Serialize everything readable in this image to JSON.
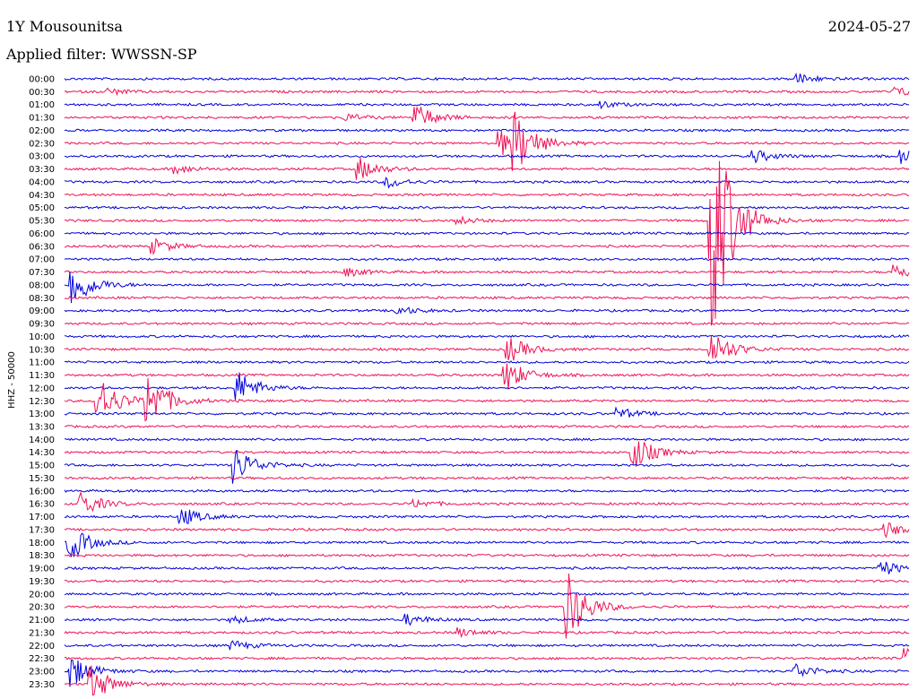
{
  "header": {
    "station": "1Y Mousounitsa",
    "date": "2024-05-27",
    "filter": "Applied filter: WWSSN-SP"
  },
  "chart_data": {
    "type": "line",
    "title": "1Y Mousounitsa",
    "ylabel": "HHZ - 50000",
    "rows": [
      "00:00",
      "00:30",
      "01:00",
      "01:30",
      "02:00",
      "02:30",
      "03:00",
      "03:30",
      "04:00",
      "04:30",
      "05:00",
      "05:30",
      "06:00",
      "06:30",
      "07:00",
      "07:30",
      "08:00",
      "08:30",
      "09:00",
      "09:30",
      "10:00",
      "10:30",
      "11:00",
      "11:30",
      "12:00",
      "12:30",
      "13:00",
      "13:30",
      "14:00",
      "14:30",
      "15:00",
      "15:30",
      "16:00",
      "16:30",
      "17:00",
      "17:30",
      "18:00",
      "18:30",
      "19:00",
      "19:30",
      "20:00",
      "20:30",
      "21:00",
      "21:30",
      "22:00",
      "22:30",
      "23:00",
      "23:30"
    ],
    "colors": [
      "#0000dd",
      "#ee1155"
    ],
    "row_minutes": 30,
    "events": [
      {
        "row": "00:00",
        "minute": 26,
        "amp": 6
      },
      {
        "row": "00:30",
        "minute": 1.5,
        "amp": 4
      },
      {
        "row": "00:30",
        "minute": 29.5,
        "amp": 5
      },
      {
        "row": "01:00",
        "minute": 19,
        "amp": 4
      },
      {
        "row": "01:30",
        "minute": 10,
        "amp": 4
      },
      {
        "row": "01:30",
        "minute": 12.5,
        "amp": 14
      },
      {
        "row": "02:30",
        "minute": 15.5,
        "amp": 14
      },
      {
        "row": "02:30",
        "minute": 16,
        "amp": 30
      },
      {
        "row": "03:00",
        "minute": 24.5,
        "amp": 7
      },
      {
        "row": "03:00",
        "minute": 29.7,
        "amp": 8
      },
      {
        "row": "03:30",
        "minute": 4,
        "amp": 5
      },
      {
        "row": "03:30",
        "minute": 10.5,
        "amp": 12
      },
      {
        "row": "04:00",
        "minute": 11.5,
        "amp": 6
      },
      {
        "row": "05:30",
        "minute": 14,
        "amp": 4
      },
      {
        "row": "05:30",
        "minute": 23,
        "amp": 140
      },
      {
        "row": "06:30",
        "minute": 3.2,
        "amp": 8
      },
      {
        "row": "07:30",
        "minute": 10,
        "amp": 5
      },
      {
        "row": "07:30",
        "minute": 29.5,
        "amp": 9
      },
      {
        "row": "08:00",
        "minute": 0.3,
        "amp": 26
      },
      {
        "row": "09:00",
        "minute": 11.8,
        "amp": 5
      },
      {
        "row": "10:30",
        "minute": 23,
        "amp": 22
      },
      {
        "row": "10:30",
        "minute": 15.8,
        "amp": 14
      },
      {
        "row": "11:30",
        "minute": 15.7,
        "amp": 18
      },
      {
        "row": "12:00",
        "minute": 6.2,
        "amp": 18
      },
      {
        "row": "12:30",
        "minute": 1.2,
        "amp": 30
      },
      {
        "row": "12:30",
        "minute": 3,
        "amp": 32
      },
      {
        "row": "13:00",
        "minute": 19.7,
        "amp": 6
      },
      {
        "row": "14:30",
        "minute": 20.2,
        "amp": 20
      },
      {
        "row": "15:00",
        "minute": 6.1,
        "amp": 20
      },
      {
        "row": "16:30",
        "minute": 0.6,
        "amp": 14
      },
      {
        "row": "16:30",
        "minute": 12.5,
        "amp": 4
      },
      {
        "row": "17:00",
        "minute": 4.2,
        "amp": 10
      },
      {
        "row": "17:30",
        "minute": 29.2,
        "amp": 8
      },
      {
        "row": "18:00",
        "minute": 0.2,
        "amp": 20
      },
      {
        "row": "19:00",
        "minute": 29,
        "amp": 9
      },
      {
        "row": "20:30",
        "minute": 17.9,
        "amp": 38
      },
      {
        "row": "21:00",
        "minute": 6,
        "amp": 4
      },
      {
        "row": "21:00",
        "minute": 12.2,
        "amp": 6
      },
      {
        "row": "21:30",
        "minute": 14,
        "amp": 5
      },
      {
        "row": "22:00",
        "minute": 6,
        "amp": 5
      },
      {
        "row": "22:30",
        "minute": 29.9,
        "amp": 14
      },
      {
        "row": "23:00",
        "minute": 0.2,
        "amp": 20
      },
      {
        "row": "23:00",
        "minute": 26,
        "amp": 8
      },
      {
        "row": "23:30",
        "minute": 1,
        "amp": 20
      }
    ]
  }
}
